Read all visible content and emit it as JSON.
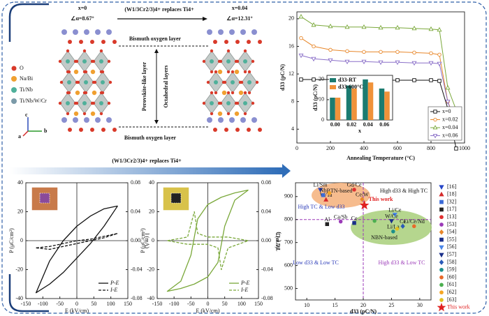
{
  "diagram": {
    "left": {
      "x_label": "x=0",
      "angle": "∠α=8.67°"
    },
    "title": "(W1/3Cr2/3)4+ replaces Ti4+",
    "right": {
      "x_label": "x=0.04",
      "angle": "∠α=12.31°"
    },
    "layers": {
      "top": "Bismuth oxygen layer",
      "bottom": "Bismuth oxygen layer",
      "perovskite": "Perovskite-like layer",
      "octahedral": "Octahedral layers"
    },
    "legend": [
      "O",
      "Na/Bi",
      "Ti/Nb",
      "Ti/Nb/W/Cr"
    ],
    "axes": [
      "c",
      "a",
      "b"
    ]
  },
  "arrow_label": "(W1/3Cr2/3)4+ replaces Ti4+",
  "chart_data": [
    {
      "type": "line",
      "x_label": "Annealing Temperature (°C)",
      "y_label": "d33 (pC/N)",
      "x": [
        25,
        100,
        200,
        300,
        400,
        500,
        600,
        700,
        800,
        850,
        900,
        950
      ],
      "series": [
        {
          "name": "x=0",
          "color": "#111111",
          "marker": "square",
          "values": [
            11.2,
            11.2,
            11.2,
            11.2,
            11.2,
            11.1,
            11.1,
            11.1,
            11.1,
            11.0,
            7,
            1.2
          ]
        },
        {
          "name": "x=0.02",
          "color": "#e8872a",
          "marker": "circle",
          "values": [
            17.2,
            16,
            15.5,
            15.3,
            15.2,
            15.2,
            15.2,
            15.1,
            15.0,
            14.8,
            8,
            5
          ]
        },
        {
          "name": "x=0.04",
          "color": "#7aa83a",
          "marker": "triangle-up",
          "values": [
            20.3,
            19.1,
            18.9,
            18.8,
            18.8,
            18.7,
            18.7,
            18.6,
            18.5,
            18.4,
            10,
            6.8
          ]
        },
        {
          "name": "x=0.06",
          "color": "#8a6fc8",
          "marker": "triangle-down",
          "values": [
            14.7,
            14.2,
            14.0,
            13.8,
            13.8,
            13.7,
            13.7,
            13.6,
            13.6,
            13.5,
            8,
            4.3
          ]
        }
      ],
      "xlim": [
        0,
        1000
      ],
      "xticks": [
        0,
        200,
        400,
        600,
        800,
        1000
      ],
      "ylim": [
        2,
        21
      ],
      "yticks": [
        4,
        8,
        12,
        16,
        20
      ],
      "legend": "lower right"
    },
    {
      "type": "bar",
      "x_label": "x",
      "y_label": "d33 (pC/N)",
      "categories": [
        "0.00",
        "0.02",
        "0.04",
        "0.06"
      ],
      "series": [
        {
          "name": "d33-RT",
          "color": "#1b7b70",
          "values": [
            11,
            17,
            20,
            15.5
          ]
        },
        {
          "name": "d33-600°C",
          "color": "#f0923a",
          "values": [
            11,
            15.5,
            18.5,
            14
          ]
        }
      ],
      "ylim": [
        0,
        22
      ],
      "yticks": [
        0,
        10,
        20
      ],
      "legend": "upper left"
    },
    {
      "type": "loop",
      "x_label": "E (kV/cm)",
      "y_label": "P (μC/cm²)",
      "y2_label": "I (mA)",
      "xlim": [
        -150,
        150
      ],
      "xticks": [
        -150,
        -100,
        -50,
        0,
        50,
        100,
        150
      ],
      "ylim": [
        -40,
        40
      ],
      "yticks": [
        -40,
        -20,
        0,
        20,
        40
      ],
      "y2lim": [
        -0.08,
        0.08
      ],
      "y2ticks": [
        -0.08,
        -0.04,
        {
          "value": 0,
          "label": "0.00"
        },
        0.04,
        0.08
      ],
      "series": [
        {
          "name": "P-E",
          "color": "#111111",
          "dash": false,
          "x": [
            120,
            80,
            40,
            0,
            -40,
            -80,
            -120,
            -80,
            -40,
            0,
            40,
            80,
            120
          ],
          "values": [
            24,
            22,
            17,
            10,
            0,
            -14,
            -36,
            -30,
            -22,
            -12,
            -2,
            10,
            24
          ]
        },
        {
          "name": "I-E",
          "color": "#111111",
          "dash": true,
          "axis": "y2",
          "x": [
            -120,
            -80,
            -40,
            0,
            40,
            80,
            120,
            80,
            40,
            0,
            -40,
            -80,
            -120
          ],
          "values": [
            -0.01,
            -0.012,
            -0.008,
            -0.004,
            0,
            0.004,
            0.01,
            0.006,
            0.002,
            0,
            -0.004,
            -0.008,
            -0.01
          ]
        }
      ],
      "legend": "lower right"
    },
    {
      "type": "loop",
      "x_label": "E (kV/cm)",
      "y_label": "P (μC/cm²)",
      "y2_label": "I (mA)",
      "xlim": [
        -150,
        150
      ],
      "xticks": [
        -150,
        -100,
        -50,
        0,
        50,
        100,
        150
      ],
      "ylim": [
        -40,
        40
      ],
      "yticks": [
        -40,
        -20,
        0,
        20,
        40
      ],
      "y2lim": [
        -0.08,
        0.08
      ],
      "y2ticks": [
        -0.08,
        -0.04,
        {
          "value": 0,
          "label": "0.00"
        },
        0.04,
        0.08
      ],
      "series": [
        {
          "name": "P-E",
          "color": "#7aa83a",
          "dash": false,
          "x": [
            120,
            80,
            40,
            0,
            -30,
            -50,
            -80,
            -120,
            -80,
            -40,
            0,
            30,
            50,
            80,
            120
          ],
          "values": [
            35,
            33,
            30,
            25,
            15,
            -10,
            -28,
            -35,
            -33,
            -30,
            -25,
            -15,
            10,
            28,
            35
          ]
        },
        {
          "name": "I-E",
          "color": "#7aa83a",
          "dash": true,
          "axis": "y2",
          "x": [
            -120,
            -60,
            -40,
            -30,
            0,
            60,
            120,
            60,
            40,
            30,
            0,
            -60,
            -120
          ],
          "values": [
            0,
            0.005,
            0.04,
            0.01,
            0.005,
            0.005,
            0,
            -0.01,
            -0.04,
            -0.01,
            -0.005,
            -0.005,
            0
          ]
        }
      ],
      "legend": "lower right"
    },
    {
      "type": "scatter",
      "x_label": "d33 (pC/N)",
      "y_label": "TC (°C)",
      "xlim": [
        8,
        32
      ],
      "xticks": [
        10,
        15,
        20,
        25,
        30
      ],
      "ylim": [
        450,
        960
      ],
      "yticks": [
        500,
        600,
        700,
        800,
        900
      ],
      "dividers": {
        "x": 20,
        "y": 800
      },
      "regions": [
        "BTN-based",
        "NBN-based"
      ],
      "quadrant_labels": [
        "High d33 & High TC",
        "High TC & Low d33",
        "Low d33 & Low TC",
        "High d33 & Low TC"
      ],
      "series": [
        {
          "name": "[16]",
          "color": "#2646c8",
          "marker": "triangle-down",
          "x": [
            12.4
          ],
          "values": [
            930
          ],
          "point_labels": [
            "Li/Sm"
          ]
        },
        {
          "name": "[18]",
          "color": "#d42a2a",
          "marker": "triangle-up",
          "x": [
            13.4
          ],
          "values": [
            886
          ],
          "point_labels": [
            "W/Ta"
          ]
        },
        {
          "name": "[32]",
          "color": "#3a6ad8",
          "marker": "square",
          "x": [
            12.9
          ],
          "values": [
            906
          ],
          "point_labels": [
            "Nb"
          ]
        },
        {
          "name": "[17]",
          "color": "#222222",
          "marker": "square",
          "x": [
            13.6
          ],
          "values": [
            780
          ],
          "point_labels": [
            "Al"
          ]
        },
        {
          "name": "[13]",
          "color": "#e03030",
          "marker": "circle",
          "x": [
            18.4
          ],
          "values": [
            930
          ],
          "point_labels": [
            "Gd/Ce"
          ]
        },
        {
          "name": "[53]",
          "color": "#9b3ab8",
          "marker": "circle",
          "x": [
            16
          ],
          "values": [
            791
          ],
          "point_labels": [
            "Ca/Sb"
          ]
        },
        {
          "name": "[54]",
          "color": "#e8872a",
          "marker": "diamond",
          "x": [
            19.8
          ],
          "values": [
            888
          ],
          "point_labels": [
            "Ce/W"
          ]
        },
        {
          "name": "[55]",
          "color": "#1a2f8a",
          "marker": "square",
          "x": [
            18.4
          ],
          "values": [
            785
          ],
          "point_labels": [
            "Ce"
          ]
        },
        {
          "name": "[56]",
          "color": "#4a86e8",
          "marker": "triangle-down",
          "x": [
            25.6
          ],
          "values": [
            822
          ],
          "point_labels": [
            "Li/Ce"
          ]
        },
        {
          "name": "[57]",
          "color": "#1a2f8a",
          "marker": "triangle-down",
          "x": [
            25
          ],
          "values": [
            794
          ],
          "point_labels": [
            "W/Ce"
          ]
        },
        {
          "name": "[58]",
          "color": "#2a5ab8",
          "marker": "diamond",
          "x": [
            27
          ],
          "values": [
            771
          ],
          "point_labels": [
            "Ce"
          ]
        },
        {
          "name": "[59]",
          "color": "#1b8f8a",
          "marker": "circle",
          "x": [
            25.3
          ],
          "values": [
            748
          ],
          "point_labels": [
            "Li/La"
          ]
        },
        {
          "name": "[60]",
          "color": "#e86a2a",
          "marker": "circle",
          "x": [
            29
          ],
          "values": [
            771
          ],
          "point_labels": [
            "Li/Ce/Nd"
          ]
        },
        {
          "name": "[61]",
          "color": "#4caf50",
          "marker": "circle",
          "x": [
            22
          ],
          "values": [
            794
          ]
        },
        {
          "name": "[62]",
          "color": "#f5a623",
          "marker": "circle",
          "x": [
            14
          ],
          "values": [
            915
          ]
        },
        {
          "name": "[63]",
          "color": "#e0c020",
          "marker": "circle",
          "x": [
            26
          ],
          "values": [
            760
          ]
        },
        {
          "name": "This work",
          "color": "#e02020",
          "marker": "star",
          "x": [
            20.2
          ],
          "values": [
            862
          ],
          "point_labels": [
            "This work"
          ]
        }
      ]
    }
  ]
}
